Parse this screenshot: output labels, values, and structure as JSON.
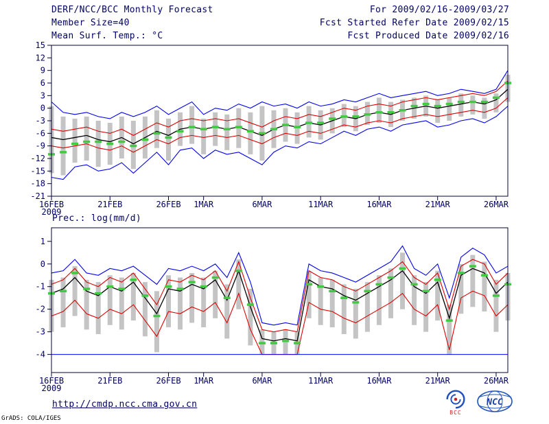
{
  "header": {
    "title": "DERF/NCC/BCC Monthly Forecast",
    "period": "For 2009/02/16-2009/03/27",
    "member_size": "Member Size=40",
    "refer_date": "Fcst Started Refer Date 2009/02/15",
    "produced_date": "Fcst Produced Date 2009/02/16"
  },
  "footer": {
    "url": "http://cmdp.ncc.cma.gov.cn",
    "credit": "GrADS: COLA/IGES",
    "logos": [
      {
        "label": "BCC"
      },
      {
        "label": "NCC"
      }
    ]
  },
  "colors": {
    "text": "#000066",
    "axis": "#000033",
    "envelope": "#0000ee",
    "quartile": "#dd0000",
    "mean": "#000000",
    "observation": "#3fca3f",
    "spread_bar": "#c4c4c4"
  },
  "chart_data": [
    {
      "type": "line",
      "name": "surface-temperature",
      "title": "Mean Surf. Temp.: °C",
      "ylim": [
        -21,
        15
      ],
      "yticks": [
        15,
        12,
        9,
        6,
        3,
        0,
        -3,
        -6,
        -9,
        -12,
        -15,
        -18,
        -21
      ],
      "n": 40,
      "grid": false,
      "xticks": [
        {
          "pos": 0,
          "label": "16FEB",
          "sub": "2009"
        },
        {
          "pos": 5,
          "label": "21FEB"
        },
        {
          "pos": 10,
          "label": "26FEB"
        },
        {
          "pos": 13,
          "label": "1MAR"
        },
        {
          "pos": 18,
          "label": "6MAR"
        },
        {
          "pos": 23,
          "label": "11MAR"
        },
        {
          "pos": 28,
          "label": "16MAR"
        },
        {
          "pos": 33,
          "label": "21MAR"
        },
        {
          "pos": 38,
          "label": "26MAR"
        }
      ],
      "series": [
        {
          "name": "ensemble-max",
          "color": "#0000ee",
          "width": 1.1,
          "values": [
            1.5,
            -1,
            -1.5,
            -1,
            -2,
            -2.5,
            -1,
            -2,
            -1,
            0.5,
            -1.5,
            0,
            1.5,
            -1.5,
            0,
            -0.5,
            1,
            0,
            1.5,
            0.5,
            1,
            0,
            1.5,
            0.5,
            1,
            2,
            1.5,
            2.5,
            3.5,
            2.5,
            3,
            3.5,
            4,
            3,
            3.5,
            4.5,
            4,
            3.5,
            4.5,
            9
          ]
        },
        {
          "name": "upper-quartile",
          "color": "#dd0000",
          "width": 1.1,
          "values": [
            -5,
            -5.5,
            -5,
            -4.5,
            -5.5,
            -6,
            -5,
            -6.5,
            -5,
            -3.5,
            -4.5,
            -3,
            -2.5,
            -3,
            -2.5,
            -3,
            -2.5,
            -3.5,
            -4.5,
            -3,
            -2,
            -2.5,
            -1.5,
            -2,
            -1,
            0,
            -0.5,
            0.5,
            1,
            0.5,
            1.5,
            2,
            2.5,
            2,
            2.5,
            3,
            3.5,
            3,
            4,
            6.5
          ]
        },
        {
          "name": "ensemble-mean",
          "color": "#000000",
          "width": 1.3,
          "values": [
            -7,
            -7.5,
            -7,
            -6.5,
            -7.5,
            -8,
            -7,
            -8.5,
            -7,
            -5.5,
            -6.5,
            -5,
            -4.5,
            -5,
            -4.5,
            -5,
            -4.5,
            -5.5,
            -6.5,
            -5,
            -4,
            -4.5,
            -3.5,
            -4,
            -3,
            -2,
            -2.5,
            -1.5,
            -1,
            -1.5,
            -0.5,
            0,
            0.5,
            0,
            0.5,
            1,
            1.5,
            1,
            2,
            4.5
          ]
        },
        {
          "name": "lower-quartile",
          "color": "#dd0000",
          "width": 1.1,
          "values": [
            -9,
            -9.5,
            -9,
            -8.5,
            -9.5,
            -10,
            -9,
            -10.5,
            -9,
            -7.5,
            -8.5,
            -7,
            -6.5,
            -7,
            -6.5,
            -7,
            -6.5,
            -7.5,
            -8.5,
            -7,
            -6,
            -6.5,
            -5.5,
            -6,
            -5,
            -4,
            -4.5,
            -3.5,
            -3,
            -3.5,
            -2.5,
            -2,
            -1.5,
            -2,
            -1.5,
            -1,
            -0.5,
            -1,
            0,
            2.5
          ]
        },
        {
          "name": "ensemble-min",
          "color": "#0000ee",
          "width": 1.1,
          "values": [
            -16.5,
            -17,
            -14,
            -13.5,
            -15,
            -14.5,
            -13,
            -15.5,
            -13,
            -10.5,
            -13.5,
            -10,
            -9.5,
            -12,
            -10,
            -11,
            -10.5,
            -12,
            -13.5,
            -10.5,
            -9,
            -9.5,
            -8,
            -8.5,
            -7,
            -5.5,
            -6.5,
            -5,
            -4.5,
            -5.5,
            -4,
            -3.5,
            -3,
            -4.5,
            -4,
            -3,
            -2.5,
            -3.5,
            -2,
            0.5
          ]
        }
      ],
      "markers": {
        "name": "observation-dash",
        "color": "#3fca3f",
        "values": [
          -11,
          -10.5,
          -8.5,
          -8,
          -8,
          -8.5,
          -8,
          -9,
          -7.5,
          -6,
          -7,
          -5.5,
          -4.5,
          -5,
          -4.5,
          -5,
          -4.5,
          -5.5,
          -6,
          -5,
          -4,
          -4.5,
          -3.5,
          -3.5,
          -2.5,
          -2,
          -2,
          -1.5,
          -1,
          -1,
          -0.5,
          0.5,
          1,
          0.5,
          1,
          1.5,
          1.5,
          1.5,
          2.5,
          6
        ]
      },
      "bars": {
        "name": "member-spread",
        "color": "#c4c4c4",
        "low": [
          -15.5,
          -16,
          -13,
          -12.5,
          -14,
          -13.5,
          -12,
          -14.5,
          -12,
          -9.5,
          -12.5,
          -9,
          -8.5,
          -11,
          -9,
          -10,
          -9.5,
          -11,
          -12.5,
          -9.5,
          -8,
          -8.5,
          -7,
          -7.5,
          -6,
          -4.5,
          -5.5,
          -4,
          -3.5,
          -4.5,
          -3,
          -2.5,
          -2,
          -3.5,
          -3,
          -2,
          -1.5,
          -2.5,
          -1,
          1.5
        ],
        "high": [
          0.5,
          -2,
          -2.5,
          -2,
          -3,
          -3.5,
          -2,
          -3,
          -2,
          -0.5,
          -2.5,
          -1,
          0.5,
          -2.5,
          -1,
          -1.5,
          0,
          -1,
          0.5,
          -0.5,
          0,
          -1,
          0.5,
          -0.5,
          0,
          1,
          0.5,
          1.5,
          2.5,
          1.5,
          2,
          2.5,
          3,
          2,
          2.5,
          3.5,
          3,
          2.5,
          3.5,
          8
        ]
      }
    },
    {
      "type": "line",
      "name": "precipitation",
      "title": "Prec.: log(mm/d)",
      "ylim": [
        -4.8,
        1.6
      ],
      "yticks": [
        1,
        0,
        -1,
        -2,
        -3,
        -4
      ],
      "n": 40,
      "grid": false,
      "xticks": [
        {
          "pos": 0,
          "label": "16FEB",
          "sub": "2009"
        },
        {
          "pos": 5,
          "label": "21FEB"
        },
        {
          "pos": 10,
          "label": "26FEB"
        },
        {
          "pos": 13,
          "label": "1MAR"
        },
        {
          "pos": 18,
          "label": "6MAR"
        },
        {
          "pos": 23,
          "label": "11MAR"
        },
        {
          "pos": 28,
          "label": "16MAR"
        },
        {
          "pos": 33,
          "label": "21MAR"
        },
        {
          "pos": 38,
          "label": "26MAR"
        }
      ],
      "series": [
        {
          "name": "ensemble-max",
          "color": "#0000ee",
          "width": 1.1,
          "values": [
            -0.4,
            -0.3,
            0.2,
            -0.4,
            -0.5,
            -0.2,
            -0.3,
            -0.1,
            -0.5,
            -0.9,
            -0.2,
            -0.3,
            -0.1,
            -0.3,
            0,
            -0.6,
            0.5,
            -0.8,
            -2.6,
            -2.7,
            -2.6,
            -2.7,
            0,
            -0.3,
            -0.4,
            -0.6,
            -0.8,
            -0.5,
            -0.2,
            0.1,
            0.8,
            -0.2,
            -0.5,
            0,
            -1.5,
            0.3,
            0.7,
            0.4,
            -0.4,
            -0.1
          ]
        },
        {
          "name": "upper-quartile",
          "color": "#dd0000",
          "width": 1.1,
          "values": [
            -0.9,
            -0.7,
            -0.2,
            -0.8,
            -1,
            -0.6,
            -0.8,
            -0.4,
            -1.1,
            -1.8,
            -0.7,
            -0.8,
            -0.5,
            -0.7,
            -0.3,
            -1.2,
            0.1,
            -1.5,
            -2.9,
            -3,
            -2.9,
            -3,
            -0.3,
            -0.6,
            -0.7,
            -1,
            -1.2,
            -0.9,
            -0.6,
            -0.3,
            0.1,
            -0.6,
            -0.9,
            -0.4,
            -2,
            -0.1,
            0.2,
            0,
            -0.9,
            -0.4
          ]
        },
        {
          "name": "ensemble-mean",
          "color": "#000000",
          "width": 1.3,
          "values": [
            -1.3,
            -1.1,
            -0.6,
            -1.2,
            -1.4,
            -1,
            -1.2,
            -0.8,
            -1.5,
            -2.2,
            -1.1,
            -1.2,
            -0.9,
            -1.1,
            -0.7,
            -1.6,
            -0.3,
            -1.9,
            -3.3,
            -3.4,
            -3.3,
            -3.4,
            -0.7,
            -1,
            -1.1,
            -1.4,
            -1.6,
            -1.3,
            -1,
            -0.7,
            -0.3,
            -1,
            -1.3,
            -0.8,
            -2.4,
            -0.5,
            -0.2,
            -0.4,
            -1.3,
            -0.8
          ]
        },
        {
          "name": "lower-quartile",
          "color": "#dd0000",
          "width": 1.1,
          "values": [
            -2.3,
            -2.1,
            -1.6,
            -2.2,
            -2.4,
            -2,
            -2.2,
            -1.8,
            -2.5,
            -3.2,
            -2.1,
            -2.2,
            -1.9,
            -2.1,
            -1.7,
            -2.6,
            -1.3,
            -2.9,
            -4,
            -4,
            -4,
            -4,
            -1.7,
            -2,
            -2.1,
            -2.4,
            -2.6,
            -2.3,
            -2,
            -1.7,
            -1.3,
            -2,
            -2.3,
            -1.8,
            -3.8,
            -1.5,
            -1.2,
            -1.4,
            -2.3,
            -1.8
          ]
        },
        {
          "name": "ensemble-min",
          "color": "#0000ee",
          "width": 1.1,
          "values": [
            -4,
            -4,
            -4,
            -4,
            -4,
            -4,
            -4,
            -4,
            -4,
            -4,
            -4,
            -4,
            -4,
            -4,
            -4,
            -4,
            -4,
            -4,
            -4,
            -4,
            -4,
            -4,
            -4,
            -4,
            -4,
            -4,
            -4,
            -4,
            -4,
            -4,
            -4,
            -4,
            -4,
            -4,
            -4,
            -4,
            -4,
            -4,
            -4,
            -4
          ]
        }
      ],
      "markers": {
        "name": "observation-dash",
        "color": "#3fca3f",
        "values": [
          -1.3,
          -1.2,
          -0.4,
          -1.1,
          -1.3,
          -1,
          -1.1,
          -0.7,
          -1.4,
          -2.3,
          -1,
          -1.1,
          -0.8,
          -1,
          -0.6,
          -1.5,
          -0.3,
          -1.8,
          -3.5,
          -3.5,
          -3.4,
          -3.5,
          -0.9,
          -1,
          -1.2,
          -1.5,
          -1.7,
          -1.2,
          -0.9,
          -0.6,
          -0.2,
          -0.9,
          -1.2,
          -0.7,
          -2.5,
          -0.4,
          -0.1,
          -0.5,
          -1.4,
          -0.9
        ]
      },
      "bars": {
        "name": "member-spread",
        "color": "#c4c4c4",
        "low": [
          -3,
          -2.8,
          -2.3,
          -2.9,
          -3.1,
          -2.7,
          -2.9,
          -2.5,
          -3.2,
          -3.9,
          -2.8,
          -2.9,
          -2.6,
          -2.8,
          -2.4,
          -3.3,
          -2,
          -3.6,
          -4,
          -4,
          -4,
          -4,
          -2.4,
          -2.7,
          -2.8,
          -3.1,
          -3.3,
          -3,
          -2.7,
          -2.4,
          -2,
          -2.7,
          -3,
          -2.5,
          -4,
          -2.2,
          -1.9,
          -2.1,
          -3,
          -2.5
        ],
        "high": [
          -0.7,
          -0.6,
          -0.1,
          -0.7,
          -0.8,
          -0.5,
          -0.6,
          -0.4,
          -0.8,
          -1.2,
          -0.5,
          -0.6,
          -0.4,
          -0.6,
          -0.3,
          -0.9,
          0.2,
          -1.1,
          -2.9,
          -3,
          -2.9,
          -3,
          -0.3,
          -0.6,
          -0.7,
          -0.9,
          -1.1,
          -0.8,
          -0.5,
          -0.2,
          0.5,
          -0.5,
          -0.8,
          -0.3,
          -1.8,
          0,
          0.4,
          0.1,
          -0.7,
          -0.4
        ]
      }
    }
  ]
}
